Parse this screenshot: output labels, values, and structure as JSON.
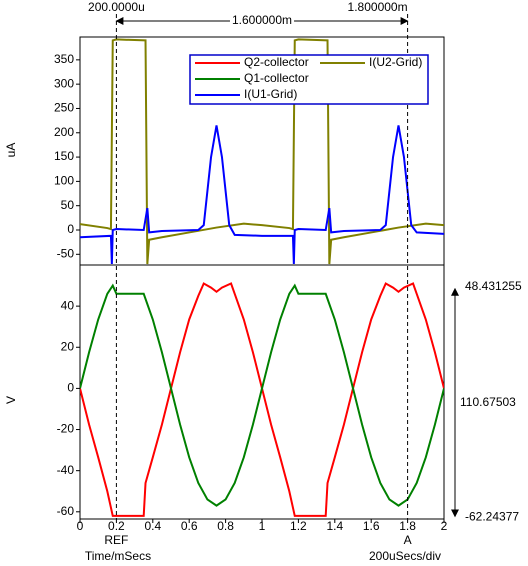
{
  "chart_data": [
    {
      "type": "line",
      "ylabel": "uA",
      "ylim": [
        -72,
        397
      ],
      "yticks": [
        -50,
        0,
        50,
        100,
        150,
        200,
        250,
        300,
        350
      ],
      "series": [
        {
          "name": "I(U2-Grid)",
          "color": "#808000",
          "x": [
            0,
            0.15,
            0.17,
            0.18,
            0.2,
            0.36,
            0.37,
            0.38,
            0.45,
            0.6,
            0.75,
            0.9,
            1.0,
            1.15,
            1.17,
            1.18,
            1.2,
            1.36,
            1.37,
            1.38,
            1.45,
            1.6,
            1.75,
            1.9,
            2.0
          ],
          "values": [
            12,
            4,
            2,
            390,
            392,
            390,
            -70,
            -20,
            -15,
            -5,
            5,
            13,
            10,
            4,
            2,
            390,
            392,
            390,
            -70,
            -20,
            -15,
            -5,
            5,
            13,
            10
          ]
        },
        {
          "name": "I(U1-Grid)",
          "color": "#0000ff",
          "x": [
            0,
            0.17,
            0.175,
            0.18,
            0.2,
            0.35,
            0.37,
            0.38,
            0.45,
            0.65,
            0.68,
            0.72,
            0.75,
            0.78,
            0.82,
            0.85,
            1.0,
            1.17,
            1.175,
            1.18,
            1.2,
            1.35,
            1.37,
            1.38,
            1.45,
            1.65,
            1.68,
            1.72,
            1.75,
            1.78,
            1.82,
            1.85,
            2.0
          ],
          "values": [
            -15,
            -12,
            -70,
            0,
            2,
            0,
            45,
            -5,
            -2,
            0,
            10,
            150,
            215,
            150,
            10,
            -10,
            -12,
            -12,
            -70,
            0,
            2,
            0,
            45,
            -5,
            -2,
            0,
            10,
            150,
            215,
            150,
            10,
            -5,
            -8
          ]
        }
      ]
    },
    {
      "type": "line",
      "ylabel": "V",
      "xlabel": "Time/mSecs",
      "xscale_note": "200uSecs/div",
      "xlim": [
        0,
        2
      ],
      "xticks": [
        0,
        0.2,
        0.4,
        0.6,
        0.8,
        1,
        1.2,
        1.4,
        1.6,
        1.8,
        2
      ],
      "ylim": [
        -63.5,
        60
      ],
      "yticks": [
        -60,
        -40,
        -20,
        0,
        20,
        40
      ],
      "series": [
        {
          "name": "Q2-collector",
          "color": "#ff0000",
          "x": [
            0,
            0.05,
            0.1,
            0.15,
            0.18,
            0.35,
            0.36,
            0.4,
            0.45,
            0.5,
            0.55,
            0.6,
            0.65,
            0.68,
            0.72,
            0.75,
            0.78,
            0.83,
            0.85,
            0.9,
            0.95,
            1.0,
            1.05,
            1.1,
            1.15,
            1.18,
            1.35,
            1.36,
            1.4,
            1.45,
            1.5,
            1.55,
            1.6,
            1.65,
            1.68,
            1.72,
            1.75,
            1.78,
            1.83,
            1.85,
            1.9,
            1.95,
            2.0
          ],
          "values": [
            0,
            -17.6,
            -33.5,
            -50,
            -62,
            -62,
            -46,
            -33.5,
            -17.6,
            0,
            17.6,
            33.5,
            45,
            51,
            49,
            47,
            49,
            51,
            46,
            33.5,
            17.6,
            0,
            -17.6,
            -33.5,
            -50,
            -62,
            -62,
            -46,
            -33.5,
            -17.6,
            0,
            17.6,
            33.5,
            45,
            51,
            49,
            47,
            49,
            51,
            46,
            33.5,
            17.6,
            0
          ]
        },
        {
          "name": "Q1-collector",
          "color": "#008000",
          "x": [
            0,
            0.05,
            0.1,
            0.15,
            0.18,
            0.2,
            0.35,
            0.4,
            0.45,
            0.5,
            0.55,
            0.6,
            0.65,
            0.7,
            0.75,
            0.8,
            0.85,
            0.9,
            0.95,
            1.0,
            1.05,
            1.1,
            1.15,
            1.18,
            1.2,
            1.35,
            1.4,
            1.45,
            1.5,
            1.55,
            1.6,
            1.65,
            1.7,
            1.75,
            1.8,
            1.85,
            1.9,
            1.95,
            2.0
          ],
          "values": [
            0,
            17.6,
            33.5,
            46,
            50,
            46,
            46,
            33.5,
            17.6,
            0,
            -17.6,
            -33.5,
            -46,
            -54,
            -57,
            -54,
            -46,
            -33.5,
            -17.6,
            0,
            17.6,
            33.5,
            46,
            50,
            46,
            46,
            33.5,
            17.6,
            0,
            -17.6,
            -33.5,
            -46,
            -54,
            -57,
            -54,
            -46,
            -33.5,
            -17.6,
            0
          ]
        }
      ]
    }
  ],
  "cursors": [
    {
      "label": "REF",
      "x": 0.2,
      "readout": "200.0000u"
    },
    {
      "label": "A",
      "x": 1.8,
      "readout": "1.800000m"
    }
  ],
  "cursor_delta": "1.600000m",
  "value_readouts": {
    "upper": {
      "value": 48.431255,
      "label": "48.431255"
    },
    "lower": {
      "value": -62.24377,
      "label": "-62.24377"
    },
    "delta": "110.67503"
  }
}
